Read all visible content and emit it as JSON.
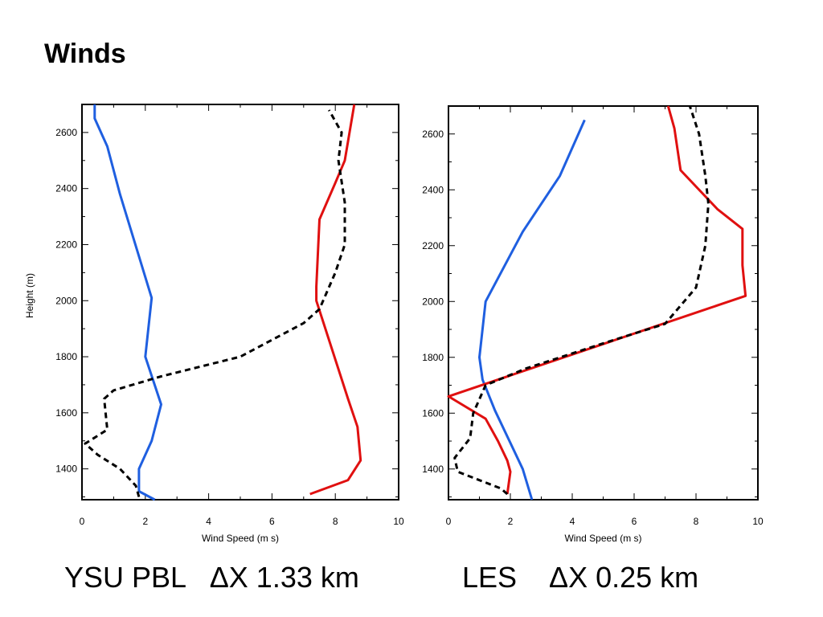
{
  "slide": {
    "title": "Winds",
    "captions": [
      "YSU PBL   ΔX 1.33 km",
      "LES    ΔX 0.25 km"
    ]
  },
  "chart_data": [
    {
      "type": "line",
      "xlabel": "Wind Speed (m s)",
      "ylabel": "Height (m)",
      "xlim": [
        0,
        10
      ],
      "ylim": [
        1290,
        2700
      ],
      "xticks": [
        0,
        2,
        4,
        6,
        8,
        10
      ],
      "yticks": [
        1400,
        1600,
        1800,
        2000,
        2200,
        2400,
        2600
      ],
      "grid": false,
      "series": [
        {
          "color": "#1f5fe0",
          "style": "solid",
          "x": [
            2.3,
            1.8,
            1.8,
            2.2,
            2.5,
            2.0,
            2.2,
            1.2,
            0.8,
            0.4,
            0.4
          ],
          "y": [
            1290,
            1320,
            1400,
            1500,
            1630,
            1800,
            2010,
            2380,
            2550,
            2650,
            2700
          ]
        },
        {
          "color": "#e01010",
          "style": "solid",
          "x": [
            7.2,
            8.4,
            8.8,
            8.7,
            8.4,
            7.4,
            7.4,
            7.5,
            8.0,
            8.3,
            8.6
          ],
          "y": [
            1310,
            1360,
            1430,
            1550,
            1650,
            2000,
            2050,
            2290,
            2420,
            2500,
            2700
          ]
        },
        {
          "color": "#000000",
          "style": "dashed",
          "x": [
            1.8,
            1.7,
            1.2,
            0.5,
            0.1,
            0.8,
            0.7,
            1.0,
            2.5,
            5.0,
            7.0,
            7.5,
            8.0,
            8.3,
            8.3,
            8.1,
            8.2,
            7.8
          ],
          "y": [
            1300,
            1340,
            1400,
            1450,
            1490,
            1540,
            1650,
            1680,
            1730,
            1800,
            1920,
            1970,
            2100,
            2200,
            2350,
            2500,
            2600,
            2680
          ]
        }
      ]
    },
    {
      "type": "line",
      "xlabel": "Wind Speed (m s)",
      "ylabel": "",
      "xlim": [
        0,
        10
      ],
      "ylim": [
        1290,
        2700
      ],
      "xticks": [
        0,
        2,
        4,
        6,
        8,
        10
      ],
      "yticks": [
        1400,
        1600,
        1800,
        2000,
        2200,
        2400,
        2600
      ],
      "grid": false,
      "series": [
        {
          "color": "#1f5fe0",
          "style": "solid",
          "x": [
            2.7,
            2.4,
            1.5,
            1.1,
            1.0,
            1.2,
            2.4,
            3.6,
            4.4
          ],
          "y": [
            1290,
            1400,
            1610,
            1720,
            1800,
            2000,
            2250,
            2450,
            2650
          ]
        },
        {
          "color": "#e01010",
          "style": "solid",
          "x": [
            1.9,
            2.0,
            1.9,
            1.6,
            1.2,
            0.0,
            9.6,
            9.5,
            9.5,
            8.7,
            7.5,
            7.3,
            7.1
          ],
          "y": [
            1310,
            1390,
            1430,
            1500,
            1580,
            1660,
            2020,
            2130,
            2260,
            2330,
            2470,
            2620,
            2700
          ]
        },
        {
          "color": "#000000",
          "style": "dashed",
          "x": [
            1.9,
            1.7,
            0.3,
            0.2,
            0.7,
            0.8,
            1.2,
            2.5,
            5.0,
            7.0,
            8.0,
            8.3,
            8.4,
            8.3,
            8.1,
            7.8
          ],
          "y": [
            1310,
            1330,
            1390,
            1440,
            1510,
            1600,
            1700,
            1760,
            1850,
            1920,
            2050,
            2200,
            2350,
            2450,
            2600,
            2700
          ]
        }
      ]
    }
  ]
}
